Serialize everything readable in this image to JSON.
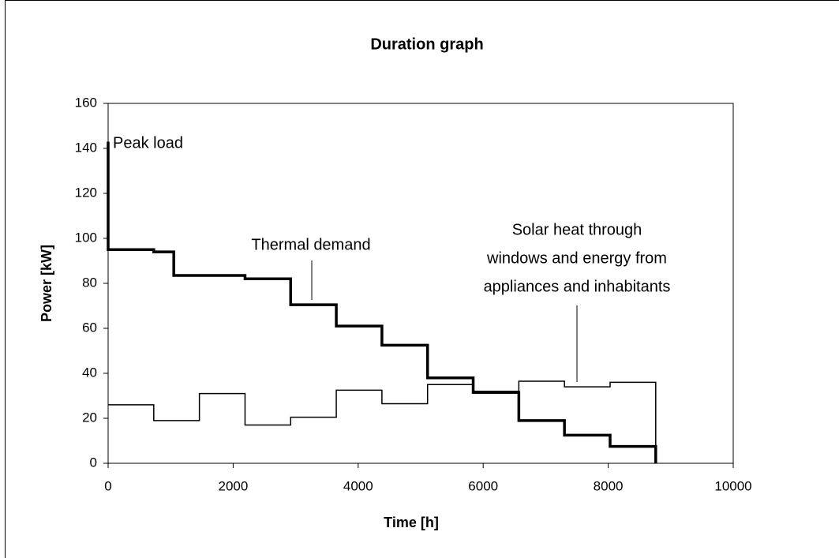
{
  "chart_data": {
    "type": "step",
    "title": "Duration graph",
    "x_label": "Time [h]",
    "y_label": "Power [kW]",
    "xlim": [
      0,
      10000
    ],
    "xticks": [
      0,
      2000,
      4000,
      6000,
      8000,
      10000
    ],
    "ylim": [
      0,
      160
    ],
    "yticks": [
      0,
      20,
      40,
      60,
      80,
      100,
      120,
      140,
      160
    ],
    "grid": false,
    "series": [
      {
        "name": "Thermal demand",
        "color": "#000000",
        "x": [
          0,
          0,
          730,
          1050,
          2190,
          2920,
          3650,
          4380,
          5110,
          5840,
          6570,
          7300,
          8030,
          8760
        ],
        "values": [
          143,
          95,
          94,
          83.5,
          82,
          70.5,
          61,
          52.5,
          38,
          31.5,
          19,
          12.5,
          7.5,
          0
        ]
      },
      {
        "name": "Solar heat through windows and energy from appliances and inhabitants",
        "color": "#000000",
        "x": [
          0,
          730,
          1460,
          2190,
          2920,
          3650,
          4380,
          5110,
          5840,
          6570,
          7300,
          8030,
          8760
        ],
        "values": [
          26,
          19,
          31,
          17,
          20.5,
          32.5,
          26.5,
          35,
          32,
          36.5,
          34,
          36,
          0
        ]
      }
    ],
    "annotations": [
      {
        "text": "Peak load"
      },
      {
        "text": "Thermal demand"
      },
      {
        "lines": [
          "Solar heat through",
          "windows and energy from",
          "appliances and inhabitants"
        ]
      }
    ]
  }
}
